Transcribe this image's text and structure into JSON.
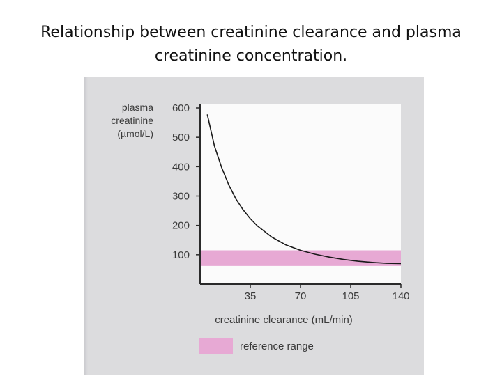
{
  "slide": {
    "title": "Relationship between creatinine clearance and plasma creatinine concentration."
  },
  "chart_data": {
    "type": "line",
    "title": "Relationship between creatinine clearance and plasma creatinine concentration.",
    "ylabel_lines": [
      "plasma",
      "creatinine",
      "(µmol/L)"
    ],
    "xlabel": "creatinine clearance (mL/min)",
    "xlim": [
      0,
      140
    ],
    "ylim": [
      0,
      600
    ],
    "x_ticks": [
      35,
      70,
      105,
      140
    ],
    "y_ticks": [
      100,
      200,
      300,
      400,
      500,
      600
    ],
    "grid": false,
    "series": [
      {
        "x": [
          5,
          10,
          15,
          20,
          25,
          30,
          35,
          40,
          50,
          60,
          70,
          80,
          90,
          100,
          110,
          120,
          130,
          140
        ],
        "y": [
          578,
          470,
          397,
          338,
          290,
          253,
          223,
          198,
          160,
          133,
          115,
          102,
          92,
          84,
          78,
          74,
          71,
          70
        ],
        "color": "#1a1a1a"
      }
    ],
    "bands": [
      {
        "label": "reference range",
        "y_range": [
          62,
          115
        ],
        "color": "#e7a9d4"
      }
    ],
    "legend": {
      "placement": "bottom",
      "entries": [
        {
          "label": "reference range",
          "color": "#e7a9d4"
        }
      ]
    }
  }
}
